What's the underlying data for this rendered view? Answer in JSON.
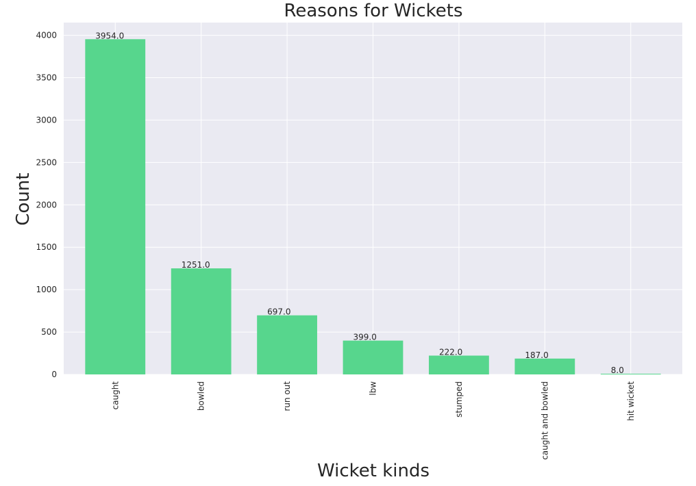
{
  "chart_data": {
    "type": "bar",
    "title": "Reasons for Wickets",
    "xlabel": "Wicket kinds",
    "ylabel": "Count",
    "categories": [
      "caught",
      "bowled",
      "run out",
      "lbw",
      "stumped",
      "caught and bowled",
      "hit wicket"
    ],
    "values": [
      3954,
      1251,
      697,
      399,
      222,
      187,
      8
    ],
    "value_labels": [
      "3954.0",
      "1251.0",
      "697.0",
      "399.0",
      "222.0",
      "187.0",
      "8.0"
    ],
    "y_ticks": [
      0,
      500,
      1000,
      1500,
      2000,
      2500,
      3000,
      3500,
      4000
    ],
    "ylim": [
      0,
      4150
    ],
    "grid": true,
    "bar_color": "#57d68d",
    "background_color": "#eaeaf2",
    "grid_color": "#ffffff"
  }
}
